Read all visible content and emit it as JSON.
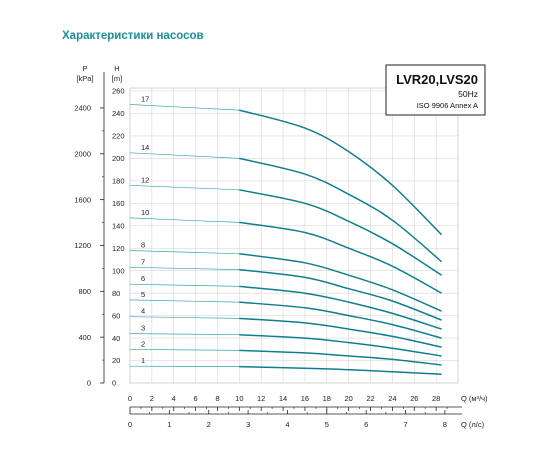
{
  "page": {
    "title": "Характеристики насосов"
  },
  "chart_data": {
    "type": "line",
    "legend": {
      "model": "LVR20,LVS20",
      "frequency": "50Hz",
      "standard": "ISO 9906 Annex A",
      "placement": "top-right"
    },
    "axes": {
      "h": {
        "label_letter": "H",
        "unit": "[m]",
        "range": [
          0,
          260
        ],
        "ticks": [
          "0",
          "20",
          "40",
          "60",
          "80",
          "100",
          "120",
          "140",
          "160",
          "180",
          "200",
          "220",
          "240",
          "260"
        ]
      },
      "p": {
        "label_letter": "P",
        "unit": "[kPa]",
        "range": [
          0,
          2548
        ],
        "ticks": [
          "0",
          "400",
          "800",
          "1200",
          "1600",
          "2000",
          "2400"
        ]
      },
      "q_m3h": {
        "label": "Q (м³/ч)",
        "range": [
          0,
          30
        ],
        "ticks": [
          "0",
          "2",
          "4",
          "6",
          "8",
          "10",
          "12",
          "14",
          "16",
          "18",
          "20",
          "22",
          "24",
          "26",
          "28"
        ]
      },
      "q_ls": {
        "label": "Q (л/с)",
        "range": [
          0,
          8.333
        ],
        "ticks": [
          "0",
          "1",
          "2",
          "3",
          "4",
          "5",
          "6",
          "7",
          "8"
        ]
      }
    },
    "grid": true,
    "q_points": [
      0,
      10,
      16,
      20,
      24,
      28.5
    ],
    "series": [
      {
        "name": "1",
        "values": [
          15,
          14.6,
          13.2,
          11.8,
          10,
          7.8
        ]
      },
      {
        "name": "2",
        "values": [
          30,
          29,
          26.8,
          24,
          21,
          16
        ]
      },
      {
        "name": "3",
        "values": [
          44,
          43,
          40,
          36,
          31,
          24
        ]
      },
      {
        "name": "4",
        "values": [
          59,
          57.5,
          53.5,
          48,
          41.5,
          32
        ]
      },
      {
        "name": "5",
        "values": [
          74,
          72,
          67,
          60,
          52,
          40
        ]
      },
      {
        "name": "6",
        "values": [
          88,
          86,
          80,
          72,
          62,
          48
        ]
      },
      {
        "name": "7",
        "values": [
          103,
          101,
          94,
          84,
          73,
          56
        ]
      },
      {
        "name": "8",
        "values": [
          118,
          115,
          107,
          96,
          83,
          64
        ]
      },
      {
        "name": "10",
        "values": [
          147,
          143,
          134,
          120,
          104,
          80
        ]
      },
      {
        "name": "12",
        "values": [
          176,
          172,
          160,
          144,
          124,
          96
        ]
      },
      {
        "name": "14",
        "values": [
          205,
          200,
          186,
          168,
          145,
          108
        ]
      },
      {
        "name": "17",
        "values": [
          248,
          243,
          227,
          206,
          176,
          132
        ]
      }
    ]
  }
}
